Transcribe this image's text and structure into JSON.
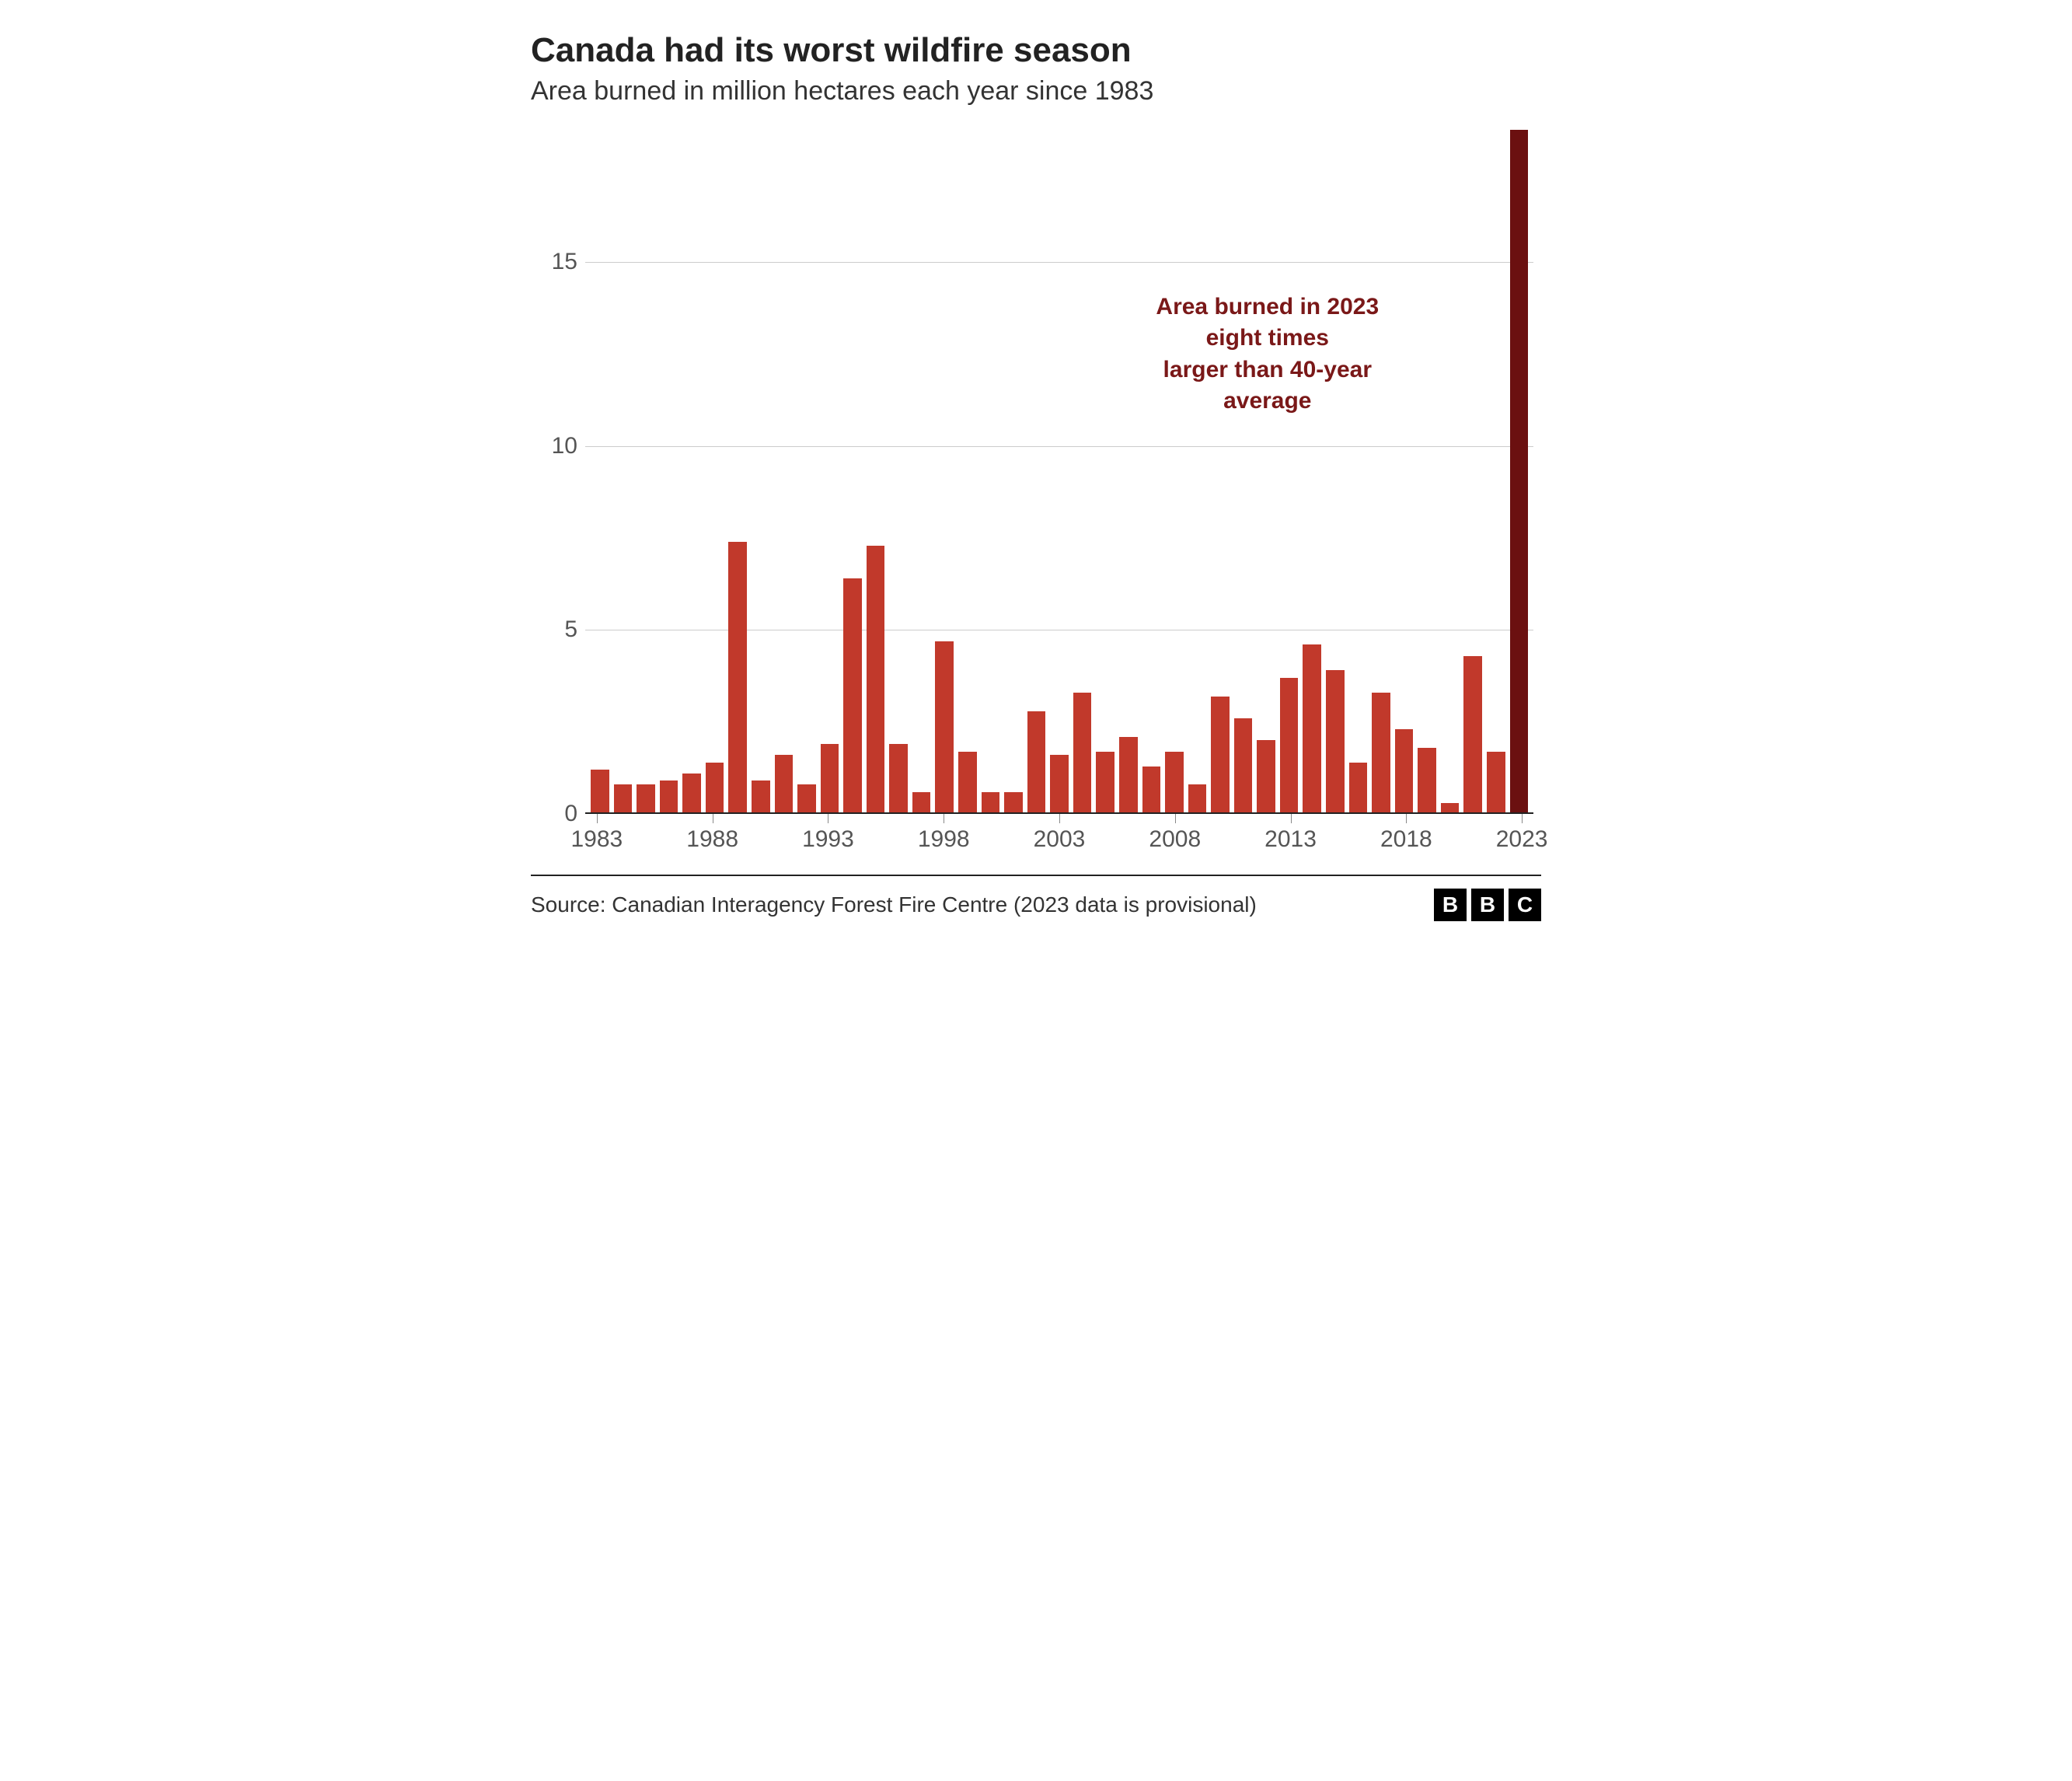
{
  "chart": {
    "type": "bar",
    "title": "Canada had its worst wildfire season",
    "subtitle": "Area burned in million hectares each year since 1983",
    "title_fontsize": 44,
    "subtitle_fontsize": 34,
    "title_color": "#222222",
    "subtitle_color": "#333333",
    "background_color": "#ffffff",
    "grid_color": "#cccccc",
    "axis_line_color": "#222222",
    "tick_label_color": "#555555",
    "tick_label_fontsize": 30,
    "ylim": [
      0,
      18.6
    ],
    "yticks": [
      0,
      5,
      10,
      15
    ],
    "xticks_labels": [
      "1983",
      "1988",
      "1993",
      "1998",
      "2003",
      "2008",
      "2013",
      "2018",
      "2023"
    ],
    "xticks_years": [
      1983,
      1988,
      1993,
      1998,
      2003,
      2008,
      2013,
      2018,
      2023
    ],
    "bar_color": "#c1392b",
    "highlight_bar_color": "#6b1010",
    "highlight_year": 2023,
    "bar_gap_ratio": 0.25,
    "years": [
      1983,
      1984,
      1985,
      1986,
      1987,
      1988,
      1989,
      1990,
      1991,
      1992,
      1993,
      1994,
      1995,
      1996,
      1997,
      1998,
      1999,
      2000,
      2001,
      2002,
      2003,
      2004,
      2005,
      2006,
      2007,
      2008,
      2009,
      2010,
      2011,
      2012,
      2013,
      2014,
      2015,
      2016,
      2017,
      2018,
      2019,
      2020,
      2021,
      2022,
      2023
    ],
    "values": [
      1.2,
      0.8,
      0.8,
      0.9,
      1.1,
      1.4,
      7.4,
      0.9,
      1.6,
      0.8,
      1.9,
      6.4,
      7.3,
      1.9,
      0.6,
      4.7,
      1.7,
      0.6,
      0.6,
      2.8,
      1.6,
      3.3,
      1.7,
      2.1,
      1.3,
      1.7,
      0.8,
      3.2,
      2.6,
      2.0,
      3.7,
      4.6,
      3.9,
      1.4,
      3.3,
      2.3,
      1.8,
      0.3,
      4.3,
      1.7,
      18.6
    ],
    "annotation": {
      "text_line1": "Area burned in 2023 eight times",
      "text_line2": "larger than 40-year average",
      "color": "#7a1818",
      "fontsize": 30,
      "fontweight": 700,
      "x_year_center": 2012,
      "y_value": 12.5
    },
    "source": "Source: Canadian Interagency Forest Fire Centre (2023 data is provisional)",
    "source_fontsize": 28,
    "logo": [
      "B",
      "B",
      "C"
    ],
    "logo_bg": "#000000",
    "logo_fg": "#ffffff"
  }
}
